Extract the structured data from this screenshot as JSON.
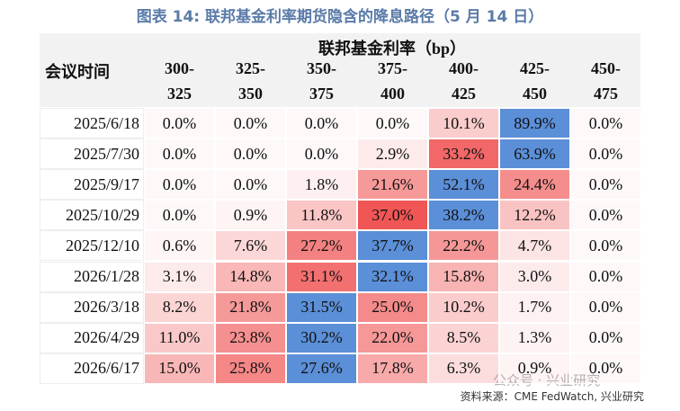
{
  "title": "图表 14: 联邦基金利率期货隐含的降息路径（5 月 14 日）",
  "table": {
    "group_header": "联邦基金利率（bp）",
    "row_header": "会议时间",
    "columns": [
      [
        "300-",
        "325"
      ],
      [
        "325-",
        "350"
      ],
      [
        "350-",
        "375"
      ],
      [
        "375-",
        "400"
      ],
      [
        "400-",
        "425"
      ],
      [
        "425-",
        "450"
      ],
      [
        "450-",
        "475"
      ]
    ],
    "rows": [
      {
        "date": "2025/6/18",
        "cells": [
          "0.0%",
          "0.0%",
          "0.0%",
          "0.0%",
          "10.1%",
          "89.9%",
          "0.0%"
        ]
      },
      {
        "date": "2025/7/30",
        "cells": [
          "0.0%",
          "0.0%",
          "0.0%",
          "2.9%",
          "33.2%",
          "63.9%",
          "0.0%"
        ]
      },
      {
        "date": "2025/9/17",
        "cells": [
          "0.0%",
          "0.0%",
          "1.8%",
          "21.6%",
          "52.1%",
          "24.4%",
          "0.0%"
        ]
      },
      {
        "date": "2025/10/29",
        "cells": [
          "0.0%",
          "0.9%",
          "11.8%",
          "37.0%",
          "38.2%",
          "12.2%",
          "0.0%"
        ]
      },
      {
        "date": "2025/12/10",
        "cells": [
          "0.6%",
          "7.6%",
          "27.2%",
          "37.7%",
          "22.2%",
          "4.7%",
          "0.0%"
        ]
      },
      {
        "date": "2026/1/28",
        "cells": [
          "3.1%",
          "14.8%",
          "31.1%",
          "32.1%",
          "15.8%",
          "3.0%",
          "0.0%"
        ]
      },
      {
        "date": "2026/3/18",
        "cells": [
          "8.2%",
          "21.8%",
          "31.5%",
          "25.0%",
          "10.2%",
          "1.7%",
          "0.0%"
        ]
      },
      {
        "date": "2026/4/29",
        "cells": [
          "11.0%",
          "23.8%",
          "30.2%",
          "22.0%",
          "8.5%",
          "1.3%",
          "0.0%"
        ]
      },
      {
        "date": "2026/6/17",
        "cells": [
          "15.0%",
          "25.8%",
          "27.6%",
          "17.8%",
          "6.3%",
          "0.9%",
          "0.0%"
        ]
      }
    ],
    "highlight_color": "#5b8fd8",
    "heat_color": [
      240,
      80,
      80
    ]
  },
  "source": "资料来源：CME FedWatch, 兴业研究",
  "watermark": "公众号 · 兴业研究"
}
